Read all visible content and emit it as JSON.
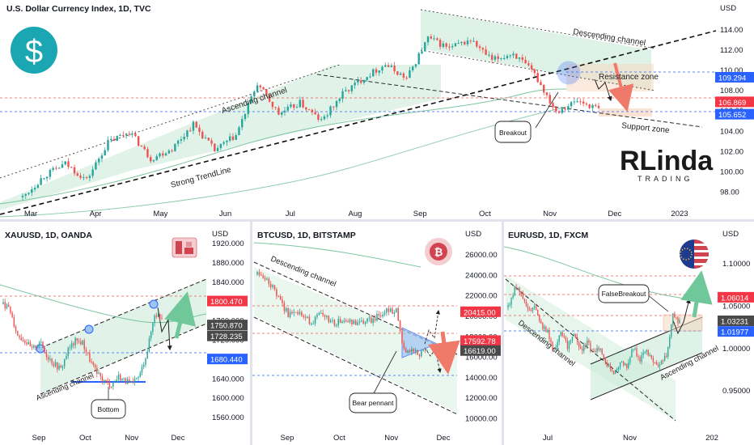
{
  "colors": {
    "up": "#26a69a",
    "down": "#ef5350",
    "channel_fill": "#c8ead7",
    "red_badge": "#f23645",
    "blue_badge": "#2962ff",
    "dark_badge": "#4a4a4a",
    "logo_teal": "#1ba6b4"
  },
  "branding": {
    "logo_text_big": "RLinda",
    "logo_text_small": "TRADING"
  },
  "chart_data": [
    {
      "id": "dxy",
      "type": "candlestick",
      "title": "U.S. Dollar Currency Index, 1D, TVC",
      "currency_label": "USD",
      "icon": "dollar-coin-icon",
      "yticks": [
        98,
        100,
        102,
        104,
        106,
        108,
        110,
        112,
        114
      ],
      "ylim": [
        96.6,
        115.2
      ],
      "xticks": [
        "Mar",
        "Apr",
        "May",
        "Jun",
        "Jul",
        "Aug",
        "Sep",
        "Oct",
        "Nov",
        "Dec",
        "2023"
      ],
      "price_badges": [
        {
          "value": "109.294",
          "kind": "blue"
        },
        {
          "value": "106.869",
          "kind": "red"
        },
        {
          "value": "105.652",
          "kind": "blue"
        }
      ],
      "annotations": [
        "Descending channel",
        "Ascending channel",
        "Resistance zone",
        "Support zone",
        "Strong TrendLine",
        "Breakout"
      ],
      "close_path": [
        97.5,
        99.6,
        100.8,
        99.2,
        102.9,
        104.0,
        101.3,
        102.3,
        104.7,
        102.1,
        103.6,
        108.7,
        105.7,
        106.8,
        105.0,
        107.7,
        109.3,
        110.6,
        109.2,
        113.2,
        112.2,
        113.0,
        111.0,
        111.7,
        109.6,
        106.0,
        107.0,
        106.2
      ]
    },
    {
      "id": "xauusd",
      "type": "candlestick",
      "title": "XAUUSD, 1D, OANDA",
      "currency_label": "USD",
      "icon": "gold-bars-icon",
      "yticks": [
        1560,
        1600,
        1640,
        1680,
        1720,
        1760,
        1800,
        1840,
        1880,
        1920
      ],
      "ylim": [
        1545,
        1922
      ],
      "xticks": [
        "Sep",
        "Oct",
        "Nov",
        "Dec"
      ],
      "price_badges": [
        {
          "value": "1800.470",
          "kind": "red"
        },
        {
          "value": "1750.870",
          "kind": "dark"
        },
        {
          "value": "1728.235",
          "kind": "dark"
        },
        {
          "value": "1680.440",
          "kind": "blue"
        }
      ],
      "annotations": [
        "Ascending channel",
        "Bottom"
      ],
      "close_path": [
        1795,
        1780,
        1730,
        1720,
        1700,
        1718,
        1690,
        1672,
        1660,
        1700,
        1718,
        1715,
        1680,
        1650,
        1635,
        1628,
        1645,
        1635,
        1628,
        1650,
        1700,
        1775,
        1768
      ]
    },
    {
      "id": "btcusd",
      "type": "candlestick",
      "title": "BTCUSD, 1D, BITSTAMP",
      "currency_label": "USD",
      "icon": "bitcoin-icon",
      "yticks": [
        10000,
        12000,
        14000,
        16000,
        18000,
        20000,
        22000,
        24000,
        26000
      ],
      "ylim": [
        9400,
        27200
      ],
      "xticks": [
        "Sep",
        "Oct",
        "Nov",
        "Dec"
      ],
      "price_badges": [
        {
          "value": "20415.00",
          "kind": "red"
        },
        {
          "value": "17592.78",
          "kind": "red"
        },
        {
          "value": "16619.00",
          "kind": "dark"
        }
      ],
      "annotations": [
        "Descending channel",
        "Bear pennant"
      ],
      "close_path": [
        24100,
        23600,
        22800,
        21400,
        20200,
        20700,
        19900,
        19400,
        20100,
        19800,
        19300,
        19600,
        19400,
        19250,
        19500,
        19700,
        20300,
        20600,
        20500,
        16600,
        16700,
        16400,
        16650
      ]
    },
    {
      "id": "eurusd",
      "type": "candlestick",
      "title": "EURUSD, 1D, FXCM",
      "currency_label": "USD",
      "icon": "eu-us-flag-icon",
      "yticks": [
        0.95,
        1.0,
        1.05,
        1.1
      ],
      "ytick_labels": [
        "0.95000",
        "1.00000",
        "1.05000",
        "1.10000"
      ],
      "ylim": [
        0.91,
        1.125
      ],
      "xticks": [
        "Jul",
        "Nov",
        "202"
      ],
      "price_badges": [
        {
          "value": "1.06014",
          "kind": "red"
        },
        {
          "value": "1.03231",
          "kind": "dark"
        },
        {
          "value": "1.01977",
          "kind": "blue"
        }
      ],
      "annotations": [
        "Descending channel",
        "Ascending channel",
        "FalseBreakout"
      ],
      "close_path": [
        1.048,
        1.072,
        1.066,
        1.045,
        1.052,
        1.028,
        1.018,
        0.999,
        1.016,
        1.003,
        1.018,
        0.998,
        1.008,
        0.993,
        1.002,
        0.982,
        0.972,
        0.985,
        0.98,
        1.002,
        0.987,
        0.996,
        0.982,
        0.98,
        0.993,
        1.038,
        1.032
      ]
    }
  ]
}
